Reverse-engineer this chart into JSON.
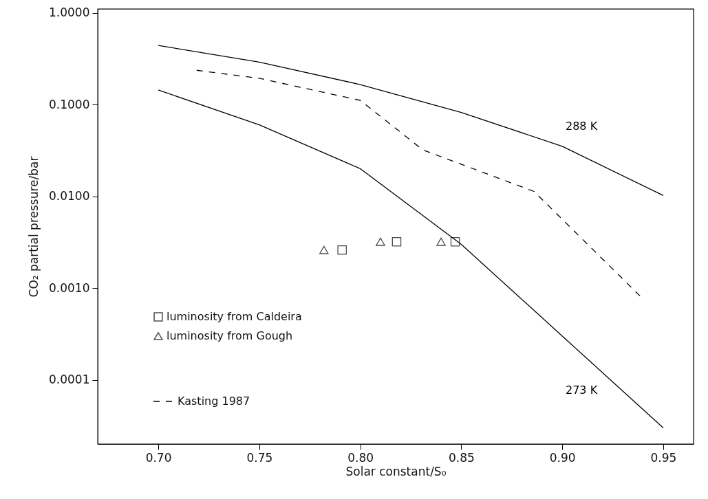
{
  "chart_data": {
    "type": "line",
    "xlabel": "Solar constant/S₀",
    "ylabel": "CO₂ partial pressure/bar",
    "log": "y",
    "legend": "bottom left",
    "xlim": [
      0.67,
      0.965
    ],
    "xticks": [
      {
        "value": 0.7,
        "label": "0.70"
      },
      {
        "value": 0.75,
        "label": "0.75"
      },
      {
        "value": 0.8,
        "label": "0.80"
      },
      {
        "value": 0.85,
        "label": "0.85"
      },
      {
        "value": 0.9,
        "label": "0.90"
      },
      {
        "value": 0.95,
        "label": "0.95"
      }
    ],
    "ylim": [
      2e-05,
      1.1
    ],
    "yticks": [
      {
        "value": 0.0001,
        "label": "0.0001"
      },
      {
        "value": 0.001,
        "label": "0.0010"
      },
      {
        "value": 0.01,
        "label": "0.0100"
      },
      {
        "value": 0.1,
        "label": "0.1000"
      },
      {
        "value": 1,
        "label": "1.0000"
      }
    ],
    "series": [
      {
        "color": "#000000",
        "line_style": "solid",
        "x": [
          0.7,
          0.75,
          0.8,
          0.85,
          0.9,
          0.95
        ],
        "values": [
          0.44,
          0.29,
          0.165,
          0.082,
          0.035,
          0.0102
        ]
      },
      {
        "color": "#000000",
        "line_style": "solid",
        "x": [
          0.7,
          0.75,
          0.8,
          0.85,
          0.9,
          0.95
        ],
        "values": [
          0.144,
          0.06,
          0.02,
          0.003,
          0.0003,
          3e-05
        ]
      },
      {
        "name": "Kasting 1987",
        "color": "#000000",
        "line_style": "dashed",
        "x": [
          0.719,
          0.75,
          0.8,
          0.831,
          0.886,
          0.939
        ],
        "values": [
          0.236,
          0.193,
          0.111,
          0.032,
          0.0113,
          0.0008
        ]
      },
      {
        "type": "scatter",
        "name": "luminosity from Caldeira",
        "color": "#000000",
        "marker": "square",
        "x": [
          0.791,
          0.818,
          0.847
        ],
        "values": [
          0.0026,
          0.0032,
          0.0032
        ]
      },
      {
        "type": "scatter",
        "name": "luminosity from Gough",
        "color": "#000000",
        "marker": "triangle",
        "x": [
          0.782,
          0.81,
          0.84
        ],
        "values": [
          0.0026,
          0.0032,
          0.0032
        ]
      }
    ],
    "annotations": [
      "288 K",
      "273 K"
    ]
  }
}
